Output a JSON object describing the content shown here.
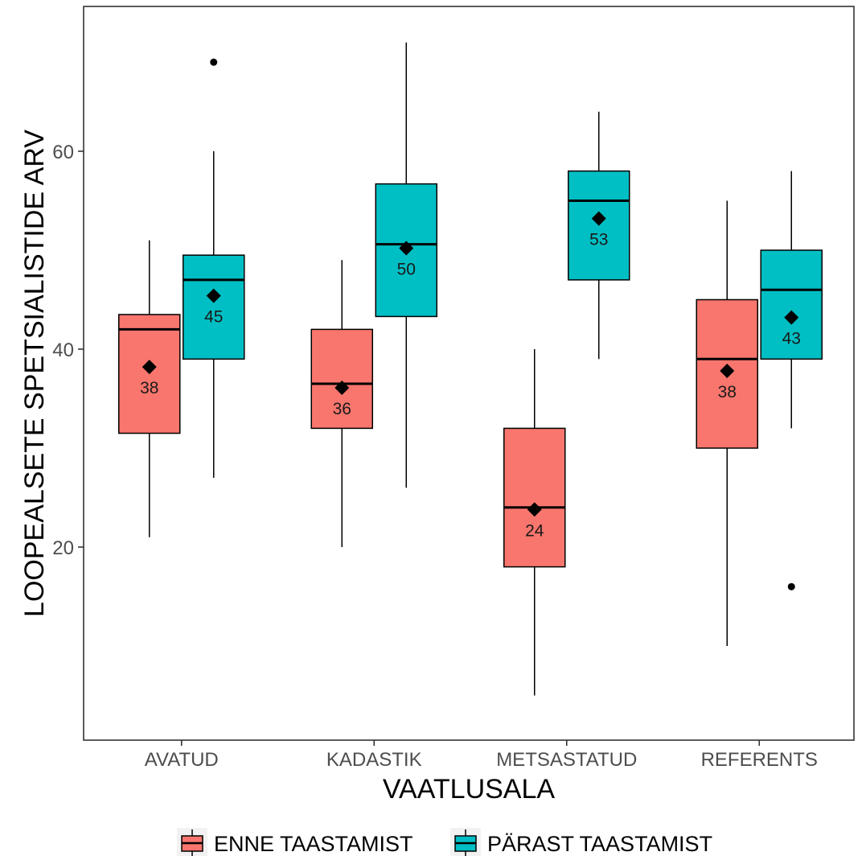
{
  "chart_data": {
    "type": "boxplot",
    "xlabel": "VAATLUSALA",
    "ylabel": "LOOPEALSETE SPETSIALISTIDE ARV",
    "ylim": [
      2,
      76
    ],
    "yticks": [
      20,
      40,
      60
    ],
    "grid": false,
    "legend_position": "bottom",
    "categories": [
      "AVATUD",
      "KADASTIK",
      "METSASTATUD",
      "REFERENTS"
    ],
    "series": [
      {
        "name": "ENNE TAASTAMIST",
        "color": "#F8766D",
        "boxes": [
          {
            "whisker_low": 21,
            "q1": 31.5,
            "median": 42,
            "q3": 43.5,
            "whisker_high": 51,
            "mean": 38.2,
            "mean_label": "38",
            "outliers": []
          },
          {
            "whisker_low": 20,
            "q1": 32,
            "median": 36.5,
            "q3": 42,
            "whisker_high": 49,
            "mean": 36.1,
            "mean_label": "36",
            "outliers": []
          },
          {
            "whisker_low": 5,
            "q1": 18,
            "median": 24,
            "q3": 32,
            "whisker_high": 40,
            "mean": 23.8,
            "mean_label": "24",
            "outliers": []
          },
          {
            "whisker_low": 10,
            "q1": 30,
            "median": 39,
            "q3": 45,
            "whisker_high": 55,
            "mean": 37.8,
            "mean_label": "38",
            "outliers": []
          }
        ]
      },
      {
        "name": "PÄRAST TAASTAMIST",
        "color": "#00BFC4",
        "boxes": [
          {
            "whisker_low": 27,
            "q1": 39,
            "median": 47,
            "q3": 49.5,
            "whisker_high": 60,
            "mean": 45.4,
            "mean_label": "45",
            "outliers": [
              69
            ]
          },
          {
            "whisker_low": 26,
            "q1": 43.3,
            "median": 50.6,
            "q3": 56.7,
            "whisker_high": 71,
            "mean": 50.2,
            "mean_label": "50",
            "outliers": []
          },
          {
            "whisker_low": 39,
            "q1": 47,
            "median": 55,
            "q3": 58,
            "whisker_high": 64,
            "mean": 53.2,
            "mean_label": "53",
            "outliers": []
          },
          {
            "whisker_low": 32,
            "q1": 39,
            "median": 46,
            "q3": 50,
            "whisker_high": 58,
            "mean": 43.2,
            "mean_label": "43",
            "outliers": [
              16
            ]
          }
        ]
      }
    ]
  }
}
